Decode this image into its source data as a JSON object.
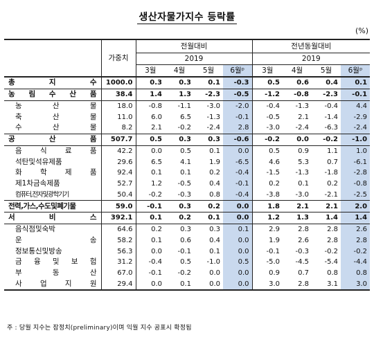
{
  "title": "생산자물가지수 등락률",
  "unit": "(%)",
  "headers": {
    "weight": "가중치",
    "mom": "전월대비",
    "yoy": "전년동월대비",
    "year": "2019",
    "months": [
      "3월",
      "4월",
      "5월",
      "6월ᵖ"
    ]
  },
  "rows": [
    {
      "label": "총 지 수",
      "weight": "1000.0",
      "mom": [
        "0.3",
        "0.3",
        "0.1",
        "-0.3"
      ],
      "yoy": [
        "0.5",
        "0.6",
        "0.4",
        "0.1"
      ]
    },
    {
      "label": "농 림 수 산 품",
      "weight": "38.4",
      "mom": [
        "1.4",
        "1.3",
        "-2.3",
        "-0.5"
      ],
      "yoy": [
        "-1.2",
        "-0.8",
        "-2.3",
        "-0.1"
      ]
    },
    {
      "label": "농 산 물",
      "weight": "18.0",
      "mom": [
        "-0.8",
        "-1.1",
        "-3.0",
        "-2.0"
      ],
      "yoy": [
        "-0.4",
        "-1.3",
        "-0.4",
        "4.4"
      ]
    },
    {
      "label": "축 산 물",
      "weight": "11.0",
      "mom": [
        "6.0",
        "6.5",
        "-1.3",
        "-0.1"
      ],
      "yoy": [
        "-0.5",
        "2.1",
        "-1.4",
        "-2.9"
      ]
    },
    {
      "label": "수 산 물",
      "weight": "8.2",
      "mom": [
        "2.1",
        "-0.2",
        "-2.4",
        "2.8"
      ],
      "yoy": [
        "-3.0",
        "-2.4",
        "-6.3",
        "-2.4"
      ]
    },
    {
      "label": "공 산 품",
      "weight": "507.7",
      "mom": [
        "0.5",
        "0.3",
        "0.3",
        "-0.6"
      ],
      "yoy": [
        "-0.2",
        "0.0",
        "-0.2",
        "-1.0"
      ]
    },
    {
      "label": "음 식 료 품",
      "weight": "42.2",
      "mom": [
        "0.0",
        "0.5",
        "0.1",
        "0.0"
      ],
      "yoy": [
        "0.5",
        "0.9",
        "1.1",
        "1.0"
      ]
    },
    {
      "label": "석탄및석유제품",
      "weight": "29.6",
      "mom": [
        "6.5",
        "4.1",
        "1.9",
        "-6.5"
      ],
      "yoy": [
        "4.6",
        "5.3",
        "0.7",
        "-6.1"
      ]
    },
    {
      "label": "화 학 제 품",
      "weight": "92.4",
      "mom": [
        "0.1",
        "0.1",
        "0.2",
        "-0.4"
      ],
      "yoy": [
        "-1.5",
        "-1.3",
        "-1.8",
        "-2.8"
      ]
    },
    {
      "label": "제1차금속제품",
      "weight": "52.7",
      "mom": [
        "1.2",
        "-0.5",
        "0.4",
        "-0.1"
      ],
      "yoy": [
        "0.2",
        "0.1",
        "0.2",
        "-0.8"
      ]
    },
    {
      "label": "컴퓨터,전자및광학기기",
      "weight": "50.4",
      "mom": [
        "-0.2",
        "-0.3",
        "0.8",
        "-0.4"
      ],
      "yoy": [
        "-3.8",
        "-3.0",
        "-2.1",
        "-2.5"
      ]
    },
    {
      "label": "전력,가스,수도및폐기물",
      "weight": "59.0",
      "mom": [
        "-0.1",
        "0.3",
        "0.2",
        "0.0"
      ],
      "yoy": [
        "1.8",
        "2.1",
        "2.1",
        "2.0"
      ]
    },
    {
      "label": "서 비 스",
      "weight": "392.1",
      "mom": [
        "0.1",
        "0.2",
        "0.1",
        "0.0"
      ],
      "yoy": [
        "1.2",
        "1.3",
        "1.4",
        "1.4"
      ]
    },
    {
      "label": "음식점및숙박",
      "weight": "64.6",
      "mom": [
        "0.2",
        "0.3",
        "0.3",
        "0.1"
      ],
      "yoy": [
        "2.9",
        "2.8",
        "2.8",
        "2.6"
      ]
    },
    {
      "label": "운 송",
      "weight": "58.2",
      "mom": [
        "0.1",
        "0.6",
        "0.4",
        "0.0"
      ],
      "yoy": [
        "1.9",
        "2.6",
        "2.8",
        "2.8"
      ]
    },
    {
      "label": "정보통신및방송",
      "weight": "56.3",
      "mom": [
        "0.0",
        "-0.1",
        "0.1",
        "0.0"
      ],
      "yoy": [
        "-0.1",
        "-0.3",
        "-0.2",
        "-0.2"
      ]
    },
    {
      "label": "금 융 및 보 험",
      "weight": "31.2",
      "mom": [
        "-0.4",
        "0.5",
        "-1.0",
        "0.5"
      ],
      "yoy": [
        "-5.0",
        "-4.5",
        "-5.4",
        "-4.4"
      ]
    },
    {
      "label": "부 동 산",
      "weight": "67.0",
      "mom": [
        "-0.1",
        "-0.2",
        "0.0",
        "0.0"
      ],
      "yoy": [
        "0.9",
        "0.7",
        "0.8",
        "0.8"
      ]
    },
    {
      "label": "사 업 지 원",
      "weight": "29.4",
      "mom": [
        "0.0",
        "0.1",
        "0.0",
        "0.0"
      ],
      "yoy": [
        "3.0",
        "2.8",
        "3.1",
        "3.0"
      ]
    }
  ],
  "note": "주 : 당월 지수는 잠정치(preliminary)이며 익월 지수 공표시 확정됨"
}
